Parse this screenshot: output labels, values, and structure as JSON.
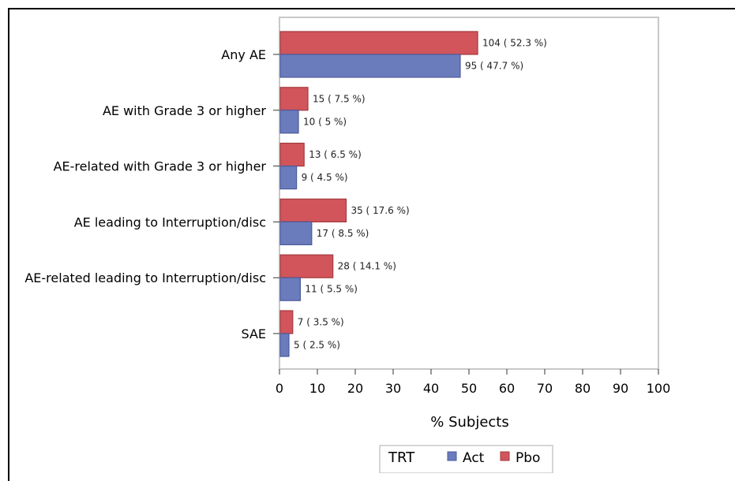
{
  "chart_data": {
    "type": "bar",
    "orientation": "horizontal",
    "categories": [
      "Any AE",
      "AE with Grade 3 or higher",
      "AE-related with Grade 3 or higher",
      "AE leading to Interruption/disc",
      "AE-related leading to Interruption/disc",
      "SAE"
    ],
    "series": [
      {
        "name": "Pbo",
        "color": "#d1555a",
        "values": [
          52.3,
          7.5,
          6.5,
          17.6,
          14.1,
          3.5
        ],
        "labels": [
          "104 ( 52.3 %)",
          "15 ( 7.5 %)",
          "13 ( 6.5 %)",
          "35 ( 17.6 %)",
          "28 ( 14.1 %)",
          "7 ( 3.5 %)"
        ]
      },
      {
        "name": "Act",
        "color": "#6b7cbd",
        "values": [
          47.7,
          5,
          4.5,
          8.5,
          5.5,
          2.5
        ],
        "labels": [
          "95 ( 47.7 %)",
          "10 ( 5 %)",
          "9 ( 4.5 %)",
          "17 ( 8.5 %)",
          "11 ( 5.5 %)",
          "5 ( 2.5 %)"
        ]
      }
    ],
    "xlabel": "% Subjects",
    "ylabel": "",
    "xlim": [
      0,
      100
    ],
    "xticks": [
      0,
      10,
      20,
      30,
      40,
      50,
      60,
      70,
      80,
      90,
      100
    ],
    "grid": false,
    "legend": {
      "title": "TRT",
      "placement": "bottom-center",
      "entries": [
        {
          "name": "Act",
          "color": "#6b7cbd"
        },
        {
          "name": "Pbo",
          "color": "#d1555a"
        }
      ]
    }
  }
}
